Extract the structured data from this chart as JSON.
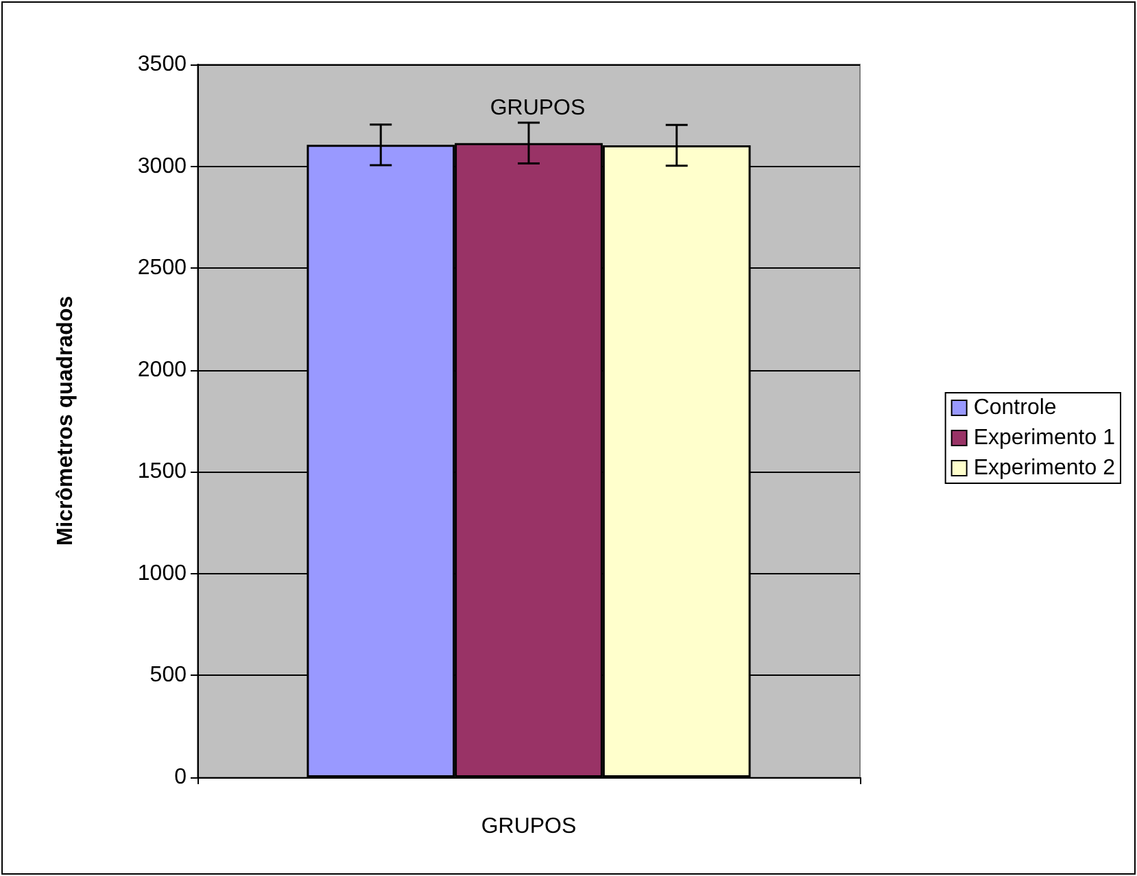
{
  "chart_data": {
    "type": "bar",
    "title": "GRUPOS",
    "xlabel": "GRUPOS",
    "ylabel": "Micrômetros quadrados",
    "categories": [
      null
    ],
    "series": [
      {
        "name": "Controle",
        "color": "#9999ff",
        "values": [
          3105
        ],
        "errors": [
          100
        ]
      },
      {
        "name": "Experimento 1",
        "color": "#993366",
        "values": [
          3114
        ],
        "errors": [
          100
        ]
      },
      {
        "name": "Experimento 2",
        "color": "#ffffcc",
        "values": [
          3103
        ],
        "errors": [
          100
        ]
      }
    ],
    "ylim": [
      0,
      3500
    ],
    "yticks": [
      0,
      500,
      1000,
      1500,
      2000,
      2500,
      3000,
      3500
    ],
    "grid": "y",
    "legend": "right"
  }
}
